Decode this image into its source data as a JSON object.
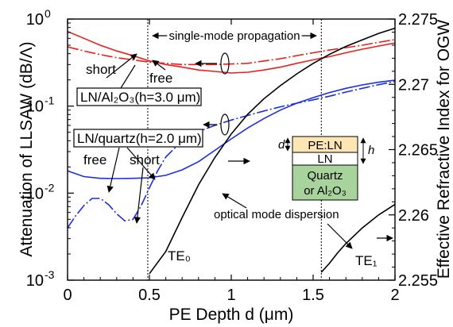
{
  "chart_data": {
    "type": "line",
    "xlabel": "PE Depth d (μm)",
    "ylabel_left": "Attenuation of LLSAW (dB/Λ)",
    "ylabel_right": "Effective Refractive Index for OGW",
    "x_ticks": [
      "0",
      "0.5",
      "1",
      "1.5",
      "2"
    ],
    "x_range": [
      0,
      2
    ],
    "y_left_scale": "log",
    "y_left_range": [
      0.001,
      1
    ],
    "y_left_ticks": [
      "10-3",
      "10-2",
      "10-1",
      "100"
    ],
    "y_right_range": [
      2.255,
      2.275
    ],
    "y_right_ticks": [
      "2.255",
      "2.26",
      "2.265",
      "2.27",
      "2.275"
    ],
    "vertical_lines_x": [
      0.49,
      1.55
    ],
    "series": [
      {
        "color": "#e8201c",
        "dash": "solid",
        "axis": "left",
        "x": [
          0,
          0.1,
          0.2,
          0.3,
          0.4,
          0.5,
          0.6,
          0.7,
          0.8,
          0.9,
          1.0,
          1.1,
          1.2,
          1.3,
          1.4,
          1.5,
          1.6,
          1.7,
          1.8,
          1.9,
          2.0
        ],
        "y": [
          0.72,
          0.6,
          0.5,
          0.43,
          0.38,
          0.33,
          0.3,
          0.28,
          0.26,
          0.25,
          0.24,
          0.245,
          0.26,
          0.28,
          0.31,
          0.34,
          0.37,
          0.41,
          0.45,
          0.49,
          0.53
        ]
      },
      {
        "color": "#e8201c",
        "dash": "dash-dot",
        "axis": "left",
        "x": [
          0,
          0.1,
          0.2,
          0.3,
          0.4,
          0.5,
          0.6,
          0.7,
          0.8,
          0.9,
          1.0,
          1.1,
          1.2,
          1.3,
          1.4,
          1.5,
          1.6,
          1.7,
          1.8,
          1.9,
          2.0
        ],
        "y": [
          0.48,
          0.43,
          0.39,
          0.36,
          0.34,
          0.32,
          0.31,
          0.3,
          0.3,
          0.3,
          0.305,
          0.31,
          0.33,
          0.35,
          0.38,
          0.41,
          0.44,
          0.47,
          0.5,
          0.54,
          0.58
        ]
      },
      {
        "color": "#1c2fe0",
        "dash": "solid",
        "axis": "left",
        "x": [
          0,
          0.1,
          0.2,
          0.3,
          0.4,
          0.5,
          0.6,
          0.7,
          0.8,
          0.9,
          1.0,
          1.1,
          1.2,
          1.3,
          1.4,
          1.5,
          1.6,
          1.7,
          1.8,
          1.9,
          2.0
        ],
        "y": [
          0.018,
          0.0155,
          0.0148,
          0.0147,
          0.0148,
          0.015,
          0.016,
          0.0185,
          0.023,
          0.031,
          0.042,
          0.056,
          0.072,
          0.09,
          0.108,
          0.125,
          0.143,
          0.16,
          0.175,
          0.188,
          0.198
        ]
      },
      {
        "color": "#1c2fe0",
        "dash": "dash-dot",
        "axis": "left",
        "x": [
          0,
          0.05,
          0.1,
          0.15,
          0.2,
          0.25,
          0.3,
          0.35,
          0.4,
          0.45,
          0.5,
          0.55,
          0.6,
          0.7,
          0.8,
          0.9,
          1.0,
          1.1,
          1.2,
          1.3,
          1.4,
          1.5,
          1.6,
          1.7,
          1.8,
          1.9,
          2.0
        ],
        "y": [
          0.004,
          0.0055,
          0.0072,
          0.0087,
          0.0087,
          0.0074,
          0.0058,
          0.0048,
          0.005,
          0.0072,
          0.0115,
          0.018,
          0.026,
          0.04,
          0.051,
          0.06,
          0.069,
          0.078,
          0.088,
          0.098,
          0.108,
          0.118,
          0.13,
          0.145,
          0.16,
          0.176,
          0.192
        ]
      },
      {
        "color": "#000000",
        "dash": "solid",
        "axis": "right",
        "x": [
          0.5,
          0.6,
          0.7,
          0.8,
          0.9,
          1.0,
          1.1,
          1.2,
          1.3,
          1.4,
          1.5,
          1.6,
          1.7,
          1.8,
          1.9,
          2.0
        ],
        "y": [
          2.2555,
          2.2572,
          2.2598,
          2.2623,
          2.2644,
          2.2662,
          2.2677,
          2.2689,
          2.2699,
          2.2708,
          2.2716,
          2.2723,
          2.2729,
          2.2734,
          2.2739,
          2.2743
        ]
      },
      {
        "color": "#000000",
        "dash": "solid",
        "axis": "right",
        "x": [
          1.55,
          1.6,
          1.65,
          1.7,
          1.75,
          1.8,
          1.85,
          1.9,
          1.95,
          2.0
        ],
        "y": [
          2.2556,
          2.2563,
          2.2571,
          2.2578,
          2.2584,
          2.259,
          2.2595,
          2.26,
          2.2604,
          2.2608
        ]
      }
    ]
  },
  "annotations": {
    "single_mode": "single-mode propagation",
    "short_top": "short",
    "free_top": "free",
    "ln_al2o3": "LN/Al₂O₃(h=3.0  μm)",
    "ln_quartz": "LN/quartz(h=2.0  μm)",
    "free_bottom": "free",
    "short_bottom": "short",
    "optical_mode": "optical mode  dispersion",
    "te0": "TE₀",
    "te1": "TE₁"
  },
  "inset": {
    "layer_pe": "PE:LN",
    "layer_ln": "LN",
    "substrate_line1": "Quartz",
    "substrate_line2": "or Al₂O₃",
    "label_d": "d",
    "label_h": "h",
    "colors": {
      "pe": "#fde5b4",
      "substrate": "#a9d39c"
    }
  }
}
